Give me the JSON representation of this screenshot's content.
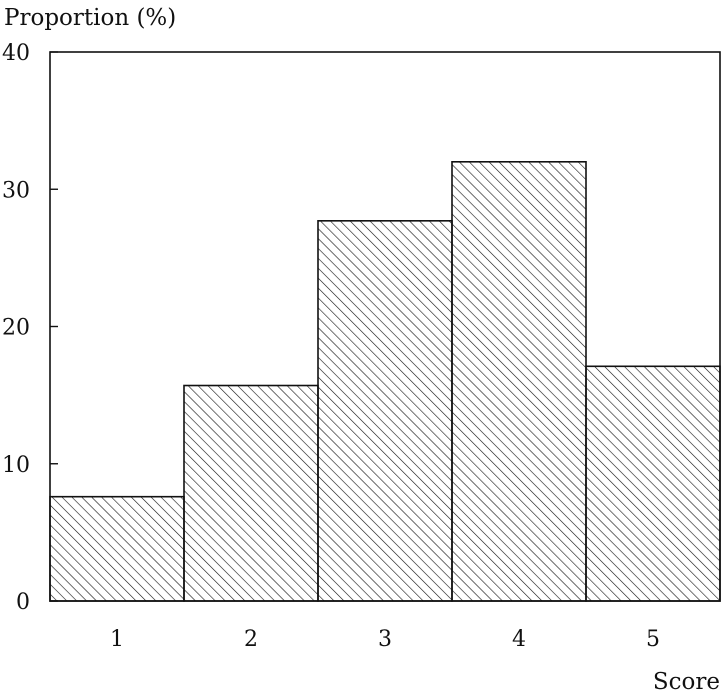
{
  "chart_data": {
    "type": "bar",
    "title": "",
    "ylabel": "Proportion (%)",
    "xlabel": "Score",
    "categories": [
      "1",
      "2",
      "3",
      "4",
      "5"
    ],
    "values": [
      7.6,
      15.7,
      27.7,
      32.0,
      17.1
    ],
    "ylim": [
      0,
      40
    ],
    "yticks": [
      0,
      10,
      20,
      30,
      40
    ],
    "grid": false,
    "legend": "none",
    "bar_fill": "diagonal-hatch",
    "colors": {
      "stroke": "#111111",
      "background": "#ffffff"
    }
  }
}
